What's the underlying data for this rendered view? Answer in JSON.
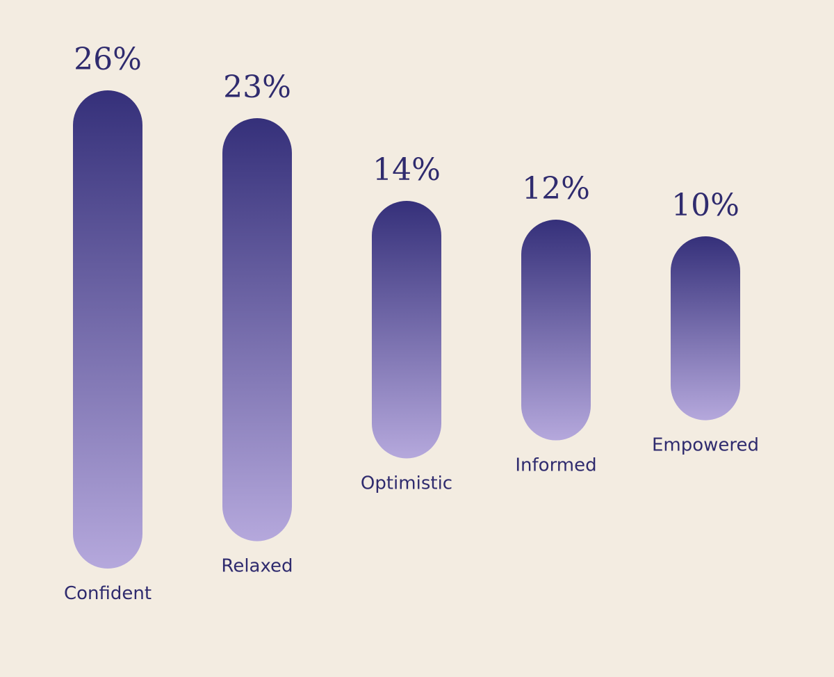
{
  "colors": {
    "background": "#f3ece1",
    "text": "#2f2b6e",
    "bar_top": "#35307a",
    "bar_bottom": "#b5a8dc"
  },
  "chart_data": {
    "type": "bar",
    "categories": [
      "Confident",
      "Relaxed",
      "Optimistic",
      "Informed",
      "Empowered"
    ],
    "values": [
      26,
      23,
      14,
      12,
      10
    ],
    "value_labels": [
      "26%",
      "23%",
      "14%",
      "12%",
      "10%"
    ],
    "unit": "%",
    "title": "",
    "xlabel": "",
    "ylabel": "",
    "ylim": [
      0,
      26
    ],
    "grid": false,
    "legend": "none"
  }
}
